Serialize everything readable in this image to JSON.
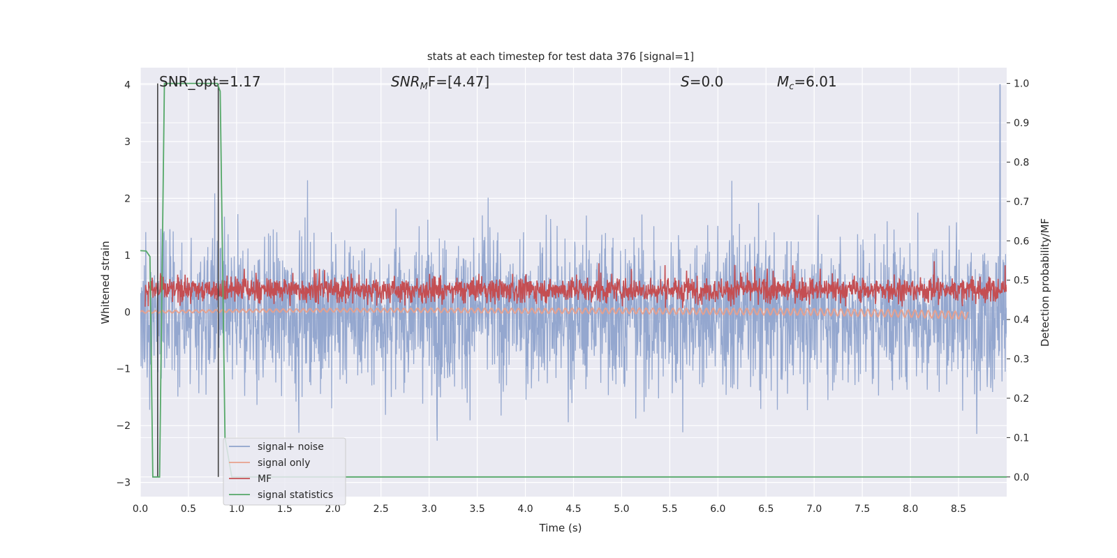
{
  "chart_data": {
    "type": "line",
    "title": "stats at each timestep for test data 376 [signal=1]",
    "xlabel": "Time (s)",
    "ylabel": "Whitened strain",
    "y2label": "Detection probability/MF",
    "xlim": [
      0,
      9.0
    ],
    "ylim": [
      -3.25,
      4.3
    ],
    "y2lim": [
      -0.05,
      1.04
    ],
    "x_ticks": [
      "0.0",
      "0.5",
      "1.0",
      "1.5",
      "2.0",
      "2.5",
      "3.0",
      "3.5",
      "4.0",
      "4.5",
      "5.0",
      "5.5",
      "6.0",
      "6.5",
      "7.0",
      "7.5",
      "8.0",
      "8.5"
    ],
    "y_ticks": [
      "4",
      "3",
      "2",
      "1",
      "0",
      "−1",
      "−2",
      "−3"
    ],
    "y2_ticks": [
      "1.0",
      "0.9",
      "0.8",
      "0.7",
      "0.6",
      "0.5",
      "0.4",
      "0.3",
      "0.2",
      "0.1",
      "0.0"
    ],
    "grid": true,
    "legend_position": "lower-left",
    "annotations": {
      "snr_opt": "SNR_opt=1.17",
      "snr_mf_base": "SNR",
      "snr_mf_sub": "M",
      "snr_mf_rest": "F=[4.47]",
      "s_label": "S",
      "s_value": "=0.0",
      "mc_label": "M",
      "mc_sub": "c",
      "mc_value": "=6.01"
    },
    "series": [
      {
        "name": "signal+ noise",
        "color": "#8fa3cc",
        "axis": "left",
        "description": "dense noisy whitened strain, roughly within [-2.9, 2.9], occasional spike to 4.0 near x=8.93"
      },
      {
        "name": "signal only",
        "color": "#e8a08c",
        "axis": "left",
        "x": [
          0.0,
          1.0,
          2.0,
          3.0,
          4.0,
          5.0,
          6.0,
          7.0,
          8.0,
          8.6
        ],
        "y": [
          0.0,
          0.02,
          0.03,
          0.03,
          0.02,
          0.02,
          0.01,
          0.0,
          -0.03,
          -0.06
        ]
      },
      {
        "name": "MF",
        "color": "#c44e52",
        "axis": "right",
        "description": "matched-filter output fluctuating roughly between 0.42 and 0.53 on the right axis, peaks near 0.56"
      },
      {
        "name": "signal statistics",
        "color": "#55a868",
        "axis": "right",
        "x": [
          0.0,
          0.06,
          0.1,
          0.13,
          0.2,
          0.25,
          0.8,
          0.83,
          0.88,
          0.95,
          9.0
        ],
        "y": [
          0.575,
          0.574,
          0.56,
          0.0,
          0.0,
          1.0,
          1.0,
          0.98,
          0.1,
          0.0,
          0.0
        ]
      }
    ],
    "vertical_lines": [
      {
        "x": 0.18,
        "y_from": 0.0,
        "y_to": 1.0,
        "color": "#404040"
      },
      {
        "x": 0.81,
        "y_from": 0.0,
        "y_to": 1.0,
        "color": "#404040"
      }
    ]
  }
}
